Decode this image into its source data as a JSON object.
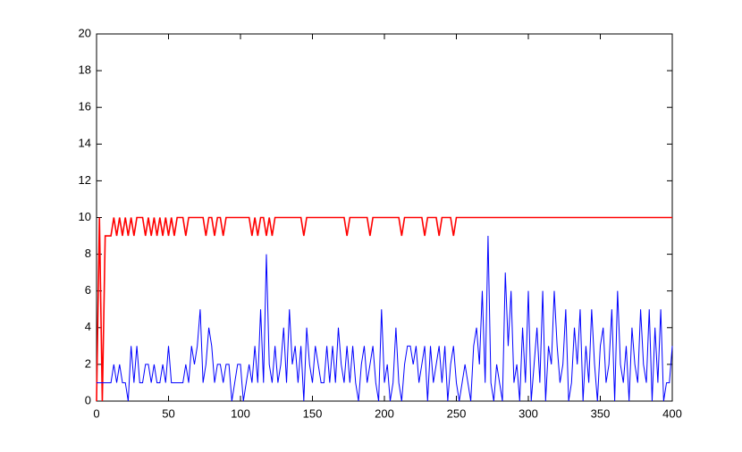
{
  "chart_data": {
    "type": "line",
    "x": [
      0,
      2,
      4,
      6,
      8,
      10,
      12,
      14,
      16,
      18,
      20,
      22,
      24,
      26,
      28,
      30,
      32,
      34,
      36,
      38,
      40,
      42,
      44,
      46,
      48,
      50,
      52,
      54,
      56,
      58,
      60,
      62,
      64,
      66,
      68,
      70,
      72,
      74,
      76,
      78,
      80,
      82,
      84,
      86,
      88,
      90,
      92,
      94,
      96,
      98,
      100,
      102,
      104,
      106,
      108,
      110,
      112,
      114,
      116,
      118,
      120,
      122,
      124,
      126,
      128,
      130,
      132,
      134,
      136,
      138,
      140,
      142,
      144,
      146,
      148,
      150,
      152,
      154,
      156,
      158,
      160,
      162,
      164,
      166,
      168,
      170,
      172,
      174,
      176,
      178,
      180,
      182,
      184,
      186,
      188,
      190,
      192,
      194,
      196,
      198,
      200,
      202,
      204,
      206,
      208,
      210,
      212,
      214,
      216,
      218,
      220,
      222,
      224,
      226,
      228,
      230,
      232,
      234,
      236,
      238,
      240,
      242,
      244,
      246,
      248,
      250,
      252,
      254,
      256,
      258,
      260,
      262,
      264,
      266,
      268,
      270,
      272,
      274,
      276,
      278,
      280,
      282,
      284,
      286,
      288,
      290,
      292,
      294,
      296,
      298,
      300,
      302,
      304,
      306,
      308,
      310,
      312,
      314,
      316,
      318,
      320,
      322,
      324,
      326,
      328,
      330,
      332,
      334,
      336,
      338,
      340,
      342,
      344,
      346,
      348,
      350,
      352,
      354,
      356,
      358,
      360,
      362,
      364,
      366,
      368,
      370,
      372,
      374,
      376,
      378,
      380,
      382,
      384,
      386,
      388,
      390,
      392,
      394,
      396,
      398,
      400
    ],
    "series": [
      {
        "color": "#ff0000",
        "values": [
          0,
          10,
          0,
          9,
          9,
          9,
          10,
          9,
          10,
          9,
          10,
          9,
          10,
          9,
          10,
          10,
          10,
          9,
          10,
          9,
          10,
          9,
          10,
          9,
          10,
          9,
          10,
          9,
          10,
          10,
          10,
          9,
          10,
          10,
          10,
          10,
          10,
          10,
          9,
          10,
          10,
          9,
          10,
          10,
          9,
          10,
          10,
          10,
          10,
          10,
          10,
          10,
          10,
          10,
          9,
          10,
          9,
          10,
          10,
          9,
          10,
          9,
          10,
          10,
          10,
          10,
          10,
          10,
          10,
          10,
          10,
          10,
          9,
          10,
          10,
          10,
          10,
          10,
          10,
          10,
          10,
          10,
          10,
          10,
          10,
          10,
          10,
          9,
          10,
          10,
          10,
          10,
          10,
          10,
          10,
          9,
          10,
          10,
          10,
          10,
          10,
          10,
          10,
          10,
          10,
          10,
          9,
          10,
          10,
          10,
          10,
          10,
          10,
          10,
          9,
          10,
          10,
          10,
          10,
          9,
          10,
          10,
          10,
          10,
          9,
          10,
          10,
          10,
          10,
          10,
          10,
          10,
          10,
          10,
          10,
          10,
          10,
          10,
          10,
          10,
          10,
          10,
          10,
          10,
          10,
          10,
          10,
          10,
          10,
          10,
          10,
          10,
          10,
          10,
          10,
          10,
          10,
          10,
          10,
          10,
          10,
          10,
          10,
          10,
          10,
          10,
          10,
          10,
          10,
          10,
          10,
          10,
          10,
          10,
          10,
          10,
          10,
          10,
          10,
          10,
          10,
          10,
          10,
          10,
          10,
          10,
          10,
          10,
          10,
          10,
          10,
          10,
          10,
          10,
          10,
          10,
          10,
          10,
          10,
          10,
          10
        ]
      },
      {
        "color": "#0000ff",
        "values": [
          1,
          1,
          1,
          1,
          1,
          1,
          2,
          1,
          2,
          1,
          1,
          0,
          3,
          1,
          3,
          1,
          1,
          2,
          2,
          1,
          2,
          1,
          1,
          2,
          1,
          3,
          1,
          1,
          1,
          1,
          1,
          2,
          1,
          3,
          2,
          3,
          5,
          1,
          2,
          4,
          3,
          1,
          2,
          2,
          1,
          2,
          2,
          0,
          1,
          2,
          2,
          0,
          1,
          2,
          1,
          3,
          1,
          5,
          1,
          8,
          2,
          1,
          3,
          1,
          2,
          4,
          1,
          5,
          2,
          3,
          1,
          3,
          0,
          4,
          2,
          1,
          3,
          2,
          1,
          1,
          3,
          1,
          3,
          1,
          4,
          2,
          1,
          3,
          1,
          3,
          1,
          0,
          2,
          3,
          1,
          2,
          3,
          1,
          0,
          5,
          1,
          2,
          0,
          1,
          4,
          1,
          0,
          2,
          3,
          3,
          2,
          3,
          1,
          2,
          3,
          0,
          3,
          1,
          2,
          3,
          1,
          3,
          0,
          2,
          3,
          1,
          0,
          1,
          2,
          1,
          0,
          3,
          4,
          2,
          6,
          1,
          9,
          1,
          0,
          2,
          1,
          0,
          7,
          3,
          6,
          1,
          2,
          0,
          4,
          1,
          6,
          0,
          2,
          4,
          1,
          6,
          0,
          3,
          2,
          6,
          3,
          1,
          2,
          5,
          0,
          1,
          4,
          2,
          5,
          0,
          3,
          1,
          5,
          2,
          0,
          3,
          4,
          1,
          2,
          5,
          0,
          6,
          2,
          1,
          3,
          0,
          4,
          2,
          1,
          5,
          2,
          1,
          5,
          0,
          4,
          1,
          5,
          0,
          1,
          1,
          3
        ]
      }
    ],
    "xlim": [
      0,
      400
    ],
    "xticks": [
      0,
      50,
      100,
      150,
      200,
      250,
      300,
      350,
      400
    ],
    "ylim": [
      0,
      20
    ],
    "yticks": [
      0,
      2,
      4,
      6,
      8,
      10,
      12,
      14,
      16,
      18,
      20
    ]
  }
}
